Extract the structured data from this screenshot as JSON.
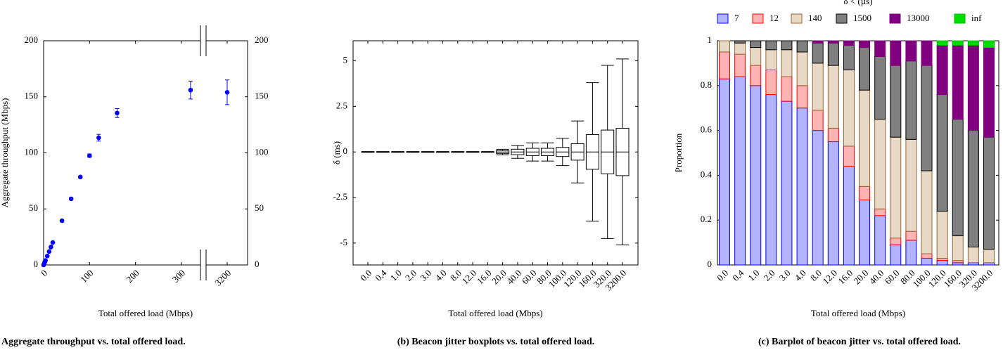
{
  "chart_data": [
    {
      "type": "scatter",
      "x": [
        0,
        0.4,
        1,
        2,
        3,
        4,
        8,
        12,
        16,
        20,
        40,
        60,
        80,
        100,
        120,
        160,
        320,
        3200
      ],
      "values": [
        0,
        0.4,
        1,
        2,
        3,
        4,
        8,
        12,
        16,
        20,
        39.5,
        59,
        78.5,
        97.5,
        113.5,
        135.5,
        156,
        154
      ],
      "errors": [
        0,
        0,
        0,
        0,
        0,
        0,
        0,
        0,
        0,
        0,
        0.5,
        0.5,
        1,
        1.5,
        3,
        4,
        8,
        11
      ],
      "color": "#0000ff",
      "xlim": [
        0,
        340
      ],
      "xticks": [
        0,
        100,
        200,
        300
      ],
      "x_break": {
        "xlim": [
          3155,
          3245
        ],
        "xticks": [
          3200
        ]
      },
      "ylim": [
        0,
        200
      ],
      "yticks": [
        0,
        50,
        100,
        150,
        200
      ],
      "right_ticks": true,
      "xlabel": "Total offered load (Mbps)",
      "ylabel": "Aggregate throughput (Mbps)",
      "caption": "Aggregate throughput vs. total offered load."
    },
    {
      "type": "box",
      "categories": [
        "0.0",
        "0.4",
        "1.0",
        "2.0",
        "3.0",
        "4.0",
        "8.0",
        "12.0",
        "16.0",
        "20.0",
        "40.0",
        "60.0",
        "80.0",
        "100.0",
        "120.0",
        "160.0",
        "320.0",
        "3200.0"
      ],
      "boxes": [
        {
          "min": -0.02,
          "q1": -0.01,
          "median": 0,
          "q3": 0.01,
          "max": 0.02
        },
        {
          "min": -0.02,
          "q1": -0.01,
          "median": 0,
          "q3": 0.01,
          "max": 0.02
        },
        {
          "min": -0.02,
          "q1": -0.01,
          "median": 0,
          "q3": 0.01,
          "max": 0.02
        },
        {
          "min": -0.02,
          "q1": -0.01,
          "median": 0,
          "q3": 0.01,
          "max": 0.02
        },
        {
          "min": -0.02,
          "q1": -0.01,
          "median": 0,
          "q3": 0.01,
          "max": 0.02
        },
        {
          "min": -0.02,
          "q1": -0.01,
          "median": 0,
          "q3": 0.01,
          "max": 0.02
        },
        {
          "min": -0.02,
          "q1": -0.01,
          "median": 0,
          "q3": 0.01,
          "max": 0.02
        },
        {
          "min": -0.02,
          "q1": -0.01,
          "median": 0,
          "q3": 0.01,
          "max": 0.02
        },
        {
          "min": -0.02,
          "q1": -0.01,
          "median": 0,
          "q3": 0.01,
          "max": 0.02
        },
        {
          "min": -0.15,
          "q1": -0.08,
          "median": 0,
          "q3": 0.08,
          "max": 0.15
        },
        {
          "min": -0.35,
          "q1": -0.15,
          "median": 0,
          "q3": 0.15,
          "max": 0.35
        },
        {
          "min": -0.5,
          "q1": -0.2,
          "median": 0,
          "q3": 0.2,
          "max": 0.5
        },
        {
          "min": -0.5,
          "q1": -0.2,
          "median": 0,
          "q3": 0.2,
          "max": 0.5
        },
        {
          "min": -0.75,
          "q1": -0.25,
          "median": 0,
          "q3": 0.25,
          "max": 0.75
        },
        {
          "min": -1.7,
          "q1": -0.45,
          "median": 0,
          "q3": 0.45,
          "max": 1.7
        },
        {
          "min": -3.8,
          "q1": -0.95,
          "median": 0,
          "q3": 0.95,
          "max": 3.8
        },
        {
          "min": -4.75,
          "q1": -1.2,
          "median": 0,
          "q3": 1.2,
          "max": 4.75
        },
        {
          "min": -5.1,
          "q1": -1.3,
          "median": 0,
          "q3": 1.3,
          "max": 5.1
        }
      ],
      "color": "#000000",
      "ylim": [
        -6.2,
        6.1
      ],
      "yticks": [
        -5,
        -2.5,
        0,
        2.5,
        5
      ],
      "xlabel": "Total offered load (Mbps)",
      "ylabel": "δ (ms)",
      "caption": "(b) Beacon jitter boxplots vs. total offered load."
    },
    {
      "type": "bar",
      "stacked": true,
      "categories": [
        "0.0",
        "0.4",
        "1.0",
        "2.0",
        "3.0",
        "4.0",
        "8.0",
        "12.0",
        "16.0",
        "20.0",
        "40.0",
        "60.0",
        "80.0",
        "100.0",
        "120.0",
        "160.0",
        "320.0",
        "3200.0"
      ],
      "series": [
        {
          "name": "7",
          "color": "#b3b3ff",
          "edgecolor": "#0000ff",
          "values": [
            0.83,
            0.84,
            0.8,
            0.76,
            0.73,
            0.7,
            0.6,
            0.55,
            0.44,
            0.29,
            0.22,
            0.09,
            0.11,
            0.03,
            0.02,
            0.01,
            0.01,
            0.01
          ]
        },
        {
          "name": "12",
          "color": "#ffb3b3",
          "edgecolor": "#ff0000",
          "values": [
            0.12,
            0.1,
            0.09,
            0.11,
            0.11,
            0.1,
            0.09,
            0.06,
            0.09,
            0.06,
            0.03,
            0.03,
            0.04,
            0.02,
            0.01,
            0.01,
            0,
            0
          ]
        },
        {
          "name": "140",
          "color": "#e8d8c6",
          "edgecolor": "#996633",
          "values": [
            0.05,
            0.05,
            0.08,
            0.09,
            0.12,
            0.15,
            0.21,
            0.28,
            0.34,
            0.43,
            0.4,
            0.45,
            0.41,
            0.37,
            0.21,
            0.11,
            0.07,
            0.06
          ]
        },
        {
          "name": "1500",
          "color": "#808080",
          "edgecolor": "#000000",
          "values": [
            0,
            0.01,
            0.03,
            0.04,
            0.04,
            0.05,
            0.09,
            0.1,
            0.11,
            0.19,
            0.28,
            0.32,
            0.35,
            0.47,
            0.52,
            0.52,
            0.52,
            0.5
          ]
        },
        {
          "name": "13000",
          "color": "#800080",
          "edgecolor": "#800080",
          "values": [
            0,
            0,
            0,
            0,
            0,
            0,
            0.01,
            0.01,
            0.02,
            0.03,
            0.07,
            0.11,
            0.09,
            0.11,
            0.22,
            0.33,
            0.38,
            0.4
          ]
        },
        {
          "name": "inf",
          "color": "#00dd00",
          "edgecolor": "#00bb00",
          "values": [
            0,
            0,
            0,
            0,
            0,
            0,
            0,
            0,
            0,
            0,
            0,
            0,
            0,
            0,
            0.02,
            0.02,
            0.02,
            0.03
          ]
        }
      ],
      "ylim": [
        0,
        1
      ],
      "yticks": [
        0,
        0.2,
        0.4,
        0.6,
        0.8,
        1
      ],
      "legend_title": "δ < (µs)",
      "legend_position": "top",
      "xlabel": "Total offered load (Mbps)",
      "ylabel": "Proportion",
      "caption": "(c) Barplot of beacon jitter vs. total offered load."
    }
  ]
}
